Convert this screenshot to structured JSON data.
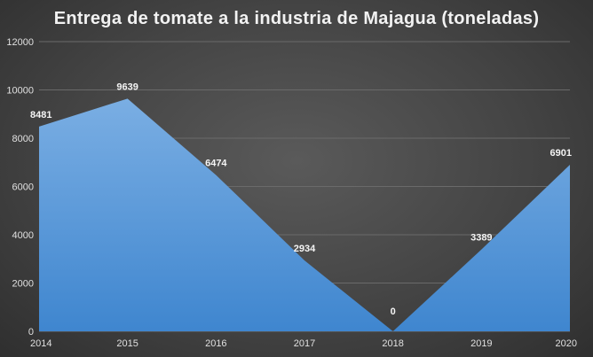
{
  "chart_data": {
    "type": "area",
    "title": "Entrega de tomate a la industria de Majagua (toneladas)",
    "categories": [
      "2014",
      "2015",
      "2016",
      "2017",
      "2018",
      "2019",
      "2020"
    ],
    "series": [
      {
        "values": [
          8481,
          9639,
          6474,
          2934,
          0,
          3389,
          6901
        ]
      }
    ],
    "data_labels": [
      "8481",
      "9639",
      "6474",
      "2934",
      "0",
      "3389",
      "6901"
    ],
    "ylim": [
      0,
      12000
    ],
    "yticks": [
      "0",
      "2000",
      "4000",
      "6000",
      "8000",
      "10000",
      "12000"
    ],
    "grid": true,
    "legend": "none",
    "colors": {
      "fill_top": "#7aaee3",
      "fill_bottom": "#3f86cf",
      "background": "#454545"
    }
  }
}
